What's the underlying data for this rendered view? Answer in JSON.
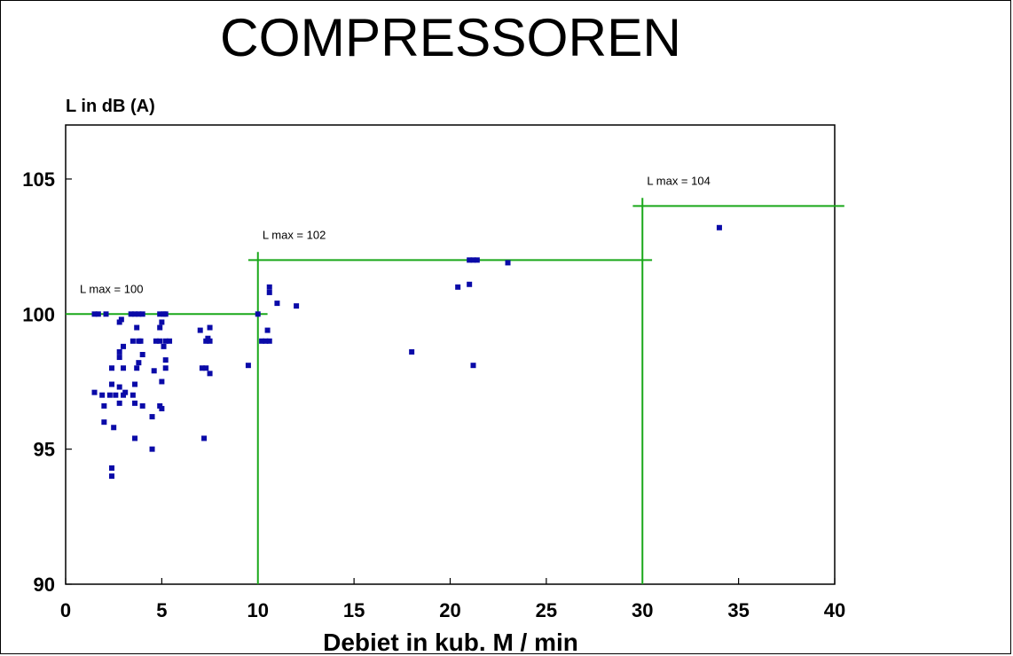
{
  "chart_data": {
    "type": "scatter",
    "title": "COMPRESSOREN",
    "xlabel": "Debiet in kub. M / min",
    "ylabel": "L in dB (A)",
    "xlim": [
      0,
      40
    ],
    "ylim": [
      90,
      107
    ],
    "x_ticks": [
      0,
      5,
      10,
      15,
      20,
      25,
      30,
      35,
      40
    ],
    "y_ticks": [
      90,
      95,
      100,
      105
    ],
    "grid": false,
    "point_color": "#0a0aa8",
    "line_color": "#1aa81a",
    "points": [
      [
        1.5,
        100
      ],
      [
        1.7,
        100
      ],
      [
        2.1,
        100
      ],
      [
        3.4,
        100
      ],
      [
        3.6,
        100
      ],
      [
        3.8,
        100
      ],
      [
        4.0,
        100
      ],
      [
        4.9,
        100
      ],
      [
        5.1,
        100
      ],
      [
        5.2,
        100
      ],
      [
        10.0,
        100
      ],
      [
        1.5,
        97.1
      ],
      [
        1.9,
        97.0
      ],
      [
        2.0,
        96.6
      ],
      [
        2.0,
        96.0
      ],
      [
        2.3,
        97.0
      ],
      [
        2.4,
        97.4
      ],
      [
        2.4,
        98.0
      ],
      [
        2.5,
        95.8
      ],
      [
        2.4,
        94.3
      ],
      [
        2.4,
        94.0
      ],
      [
        2.6,
        97.0
      ],
      [
        2.8,
        96.7
      ],
      [
        2.8,
        97.3
      ],
      [
        2.8,
        98.4
      ],
      [
        2.8,
        98.6
      ],
      [
        2.8,
        99.7
      ],
      [
        2.9,
        99.8
      ],
      [
        3.0,
        98.8
      ],
      [
        3.0,
        98.0
      ],
      [
        3.1,
        97.1
      ],
      [
        3.0,
        97.0
      ],
      [
        3.5,
        99.0
      ],
      [
        3.6,
        97.4
      ],
      [
        3.5,
        97.0
      ],
      [
        3.6,
        96.7
      ],
      [
        3.6,
        95.4
      ],
      [
        3.7,
        99.5
      ],
      [
        3.8,
        99.0
      ],
      [
        3.7,
        98.0
      ],
      [
        3.8,
        98.2
      ],
      [
        3.9,
        99.0
      ],
      [
        4.0,
        98.5
      ],
      [
        4.0,
        96.6
      ],
      [
        4.5,
        96.2
      ],
      [
        4.5,
        95.0
      ],
      [
        4.6,
        97.9
      ],
      [
        4.7,
        99.0
      ],
      [
        4.9,
        99.5
      ],
      [
        4.9,
        99.0
      ],
      [
        4.9,
        96.6
      ],
      [
        5.0,
        99.7
      ],
      [
        5.0,
        97.5
      ],
      [
        5.0,
        96.5
      ],
      [
        5.2,
        99.0
      ],
      [
        5.1,
        98.8
      ],
      [
        5.2,
        98.3
      ],
      [
        5.2,
        98.0
      ],
      [
        5.4,
        99.0
      ],
      [
        7.0,
        99.4
      ],
      [
        7.1,
        98.0
      ],
      [
        7.2,
        95.4
      ],
      [
        7.3,
        99.0
      ],
      [
        7.3,
        98.0
      ],
      [
        7.4,
        99.1
      ],
      [
        7.5,
        99.5
      ],
      [
        7.5,
        99.0
      ],
      [
        7.5,
        97.8
      ],
      [
        9.5,
        98.1
      ],
      [
        10.2,
        99.0
      ],
      [
        10.4,
        99.0
      ],
      [
        10.5,
        99.4
      ],
      [
        10.6,
        99.0
      ],
      [
        10.6,
        101.0
      ],
      [
        10.6,
        100.8
      ],
      [
        11.0,
        100.4
      ],
      [
        12.0,
        100.3
      ],
      [
        18.0,
        98.6
      ],
      [
        20.4,
        101.0
      ],
      [
        21.0,
        101.1
      ],
      [
        21.0,
        102.0
      ],
      [
        21.2,
        102.0
      ],
      [
        21.4,
        102.0
      ],
      [
        21.2,
        98.1
      ],
      [
        23.0,
        101.9
      ],
      [
        34.0,
        103.2
      ]
    ],
    "limit_lines": [
      {
        "label": "L max = 100",
        "value": 100,
        "x_from": 0,
        "x_to": 10.5
      },
      {
        "label": "L max = 102",
        "value": 102,
        "x_from": 9.5,
        "x_to": 30.5
      },
      {
        "label": "L max = 104",
        "value": 104,
        "x_from": 29.5,
        "x_to": 40.5
      }
    ],
    "vertical_lines": [
      {
        "x": 10,
        "y_from": 90,
        "y_to": 102.3
      },
      {
        "x": 30,
        "y_from": 90,
        "y_to": 104.3
      }
    ]
  }
}
